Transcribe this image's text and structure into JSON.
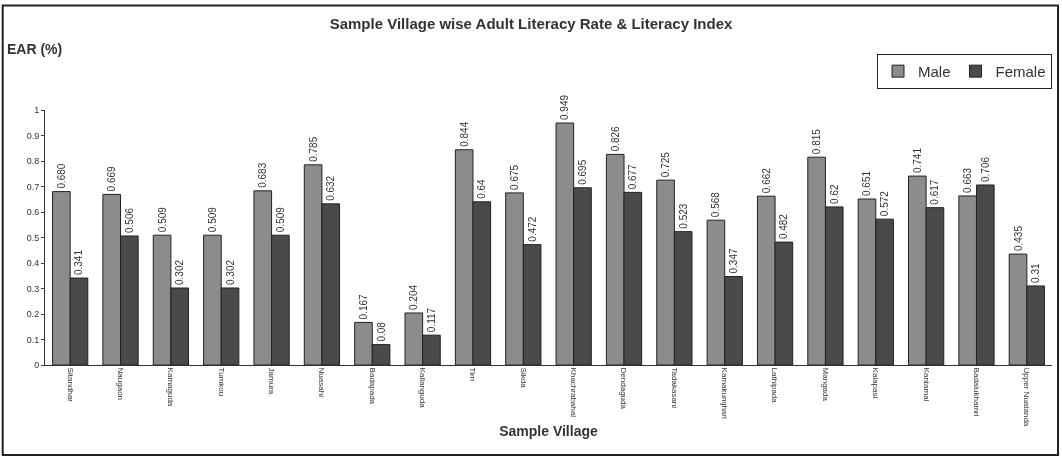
{
  "chart_data": {
    "type": "bar",
    "title": "Sample Village wise Adult Literacy Rate & Literacy Index",
    "xlabel": "Sample Village",
    "ylabel": "EAR (%)",
    "categories": [
      "Sitandhar",
      "Naugaon",
      "Kamaguda",
      "Tumkou",
      "Jamura",
      "Nuasahi",
      "Badapada",
      "Kallanguda",
      "Tirri",
      "Sikda",
      "Khachrabahal",
      "Dendaguda",
      "Tadakasani",
      "Kamakumjhari",
      "Lathipada",
      "Mangada",
      "Kalapasi",
      "Kantamal",
      "Badalukhamri",
      "Upper Nuatanda"
    ],
    "series": [
      {
        "name": "Male",
        "color": "#8c8c8c",
        "values": [
          0.68,
          0.669,
          0.509,
          0.509,
          0.683,
          0.785,
          0.167,
          0.204,
          0.844,
          0.675,
          0.949,
          0.826,
          0.725,
          0.568,
          0.662,
          0.815,
          0.651,
          0.741,
          0.663,
          0.435
        ],
        "value_labels": [
          "0.680",
          "0.669",
          "0.509",
          "0.509",
          "0.683",
          "0.785",
          "0.167",
          "0.204",
          "0.844",
          "0.675",
          "0.949",
          "0.826",
          "0.725",
          "0.568",
          "0.662",
          "0.815",
          "0.651",
          "0.741",
          "0.663",
          "0.435"
        ]
      },
      {
        "name": "Female",
        "color": "#4a4a4a",
        "values": [
          0.341,
          0.506,
          0.302,
          0.302,
          0.509,
          0.632,
          0.08,
          0.117,
          0.64,
          0.472,
          0.695,
          0.677,
          0.523,
          0.347,
          0.482,
          0.62,
          0.572,
          0.617,
          0.706,
          0.31
        ],
        "value_labels": [
          "0.341",
          "0.506",
          "0.302",
          "0.302",
          "0.509",
          "0.632",
          "0.08",
          "0.117",
          "0.64",
          "0.472",
          "0.695",
          "0.677",
          "0.523",
          "0.347",
          "0.482",
          "0.62",
          "0.572",
          "0.617",
          "0.706",
          "0.31"
        ]
      }
    ],
    "ylim": [
      0,
      1
    ],
    "yticks": [
      0,
      0.1,
      0.2,
      0.3,
      0.4,
      0.5,
      0.6,
      0.7,
      0.8,
      0.9,
      1
    ],
    "legend": "top right"
  }
}
